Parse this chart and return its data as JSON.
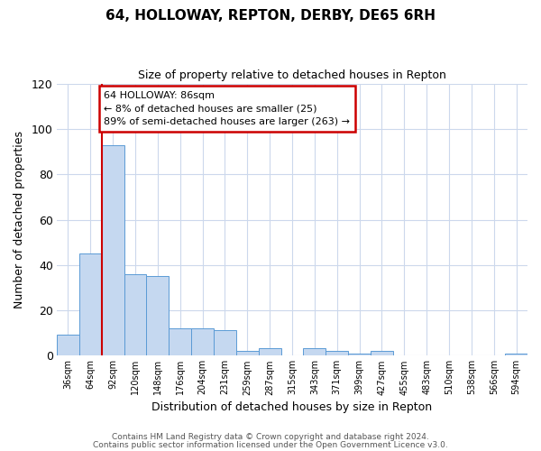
{
  "title": "64, HOLLOWAY, REPTON, DERBY, DE65 6RH",
  "subtitle": "Size of property relative to detached houses in Repton",
  "xlabel": "Distribution of detached houses by size in Repton",
  "ylabel": "Number of detached properties",
  "bar_color": "#c5d8f0",
  "bar_edge_color": "#5b9bd5",
  "background_color": "#ffffff",
  "grid_color": "#ccd8ec",
  "categories": [
    "36sqm",
    "64sqm",
    "92sqm",
    "120sqm",
    "148sqm",
    "176sqm",
    "204sqm",
    "231sqm",
    "259sqm",
    "287sqm",
    "315sqm",
    "343sqm",
    "371sqm",
    "399sqm",
    "427sqm",
    "455sqm",
    "483sqm",
    "510sqm",
    "538sqm",
    "566sqm",
    "594sqm"
  ],
  "values": [
    9,
    45,
    93,
    36,
    35,
    12,
    12,
    11,
    2,
    3,
    0,
    3,
    2,
    1,
    2,
    0,
    0,
    0,
    0,
    0,
    1
  ],
  "ylim": [
    0,
    120
  ],
  "yticks": [
    0,
    20,
    40,
    60,
    80,
    100,
    120
  ],
  "red_line_x": 1.5,
  "annotation_title": "64 HOLLOWAY: 86sqm",
  "annotation_line2": "← 8% of detached houses are smaller (25)",
  "annotation_line3": "89% of semi-detached houses are larger (263) →",
  "annotation_box_edge_color": "#cc0000",
  "footer_line1": "Contains HM Land Registry data © Crown copyright and database right 2024.",
  "footer_line2": "Contains public sector information licensed under the Open Government Licence v3.0."
}
